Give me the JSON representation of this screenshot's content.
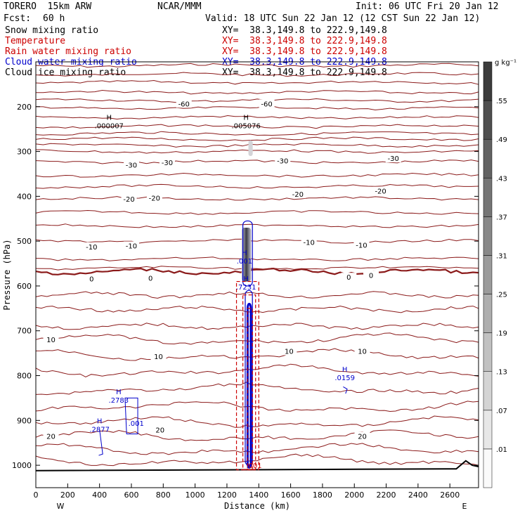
{
  "header": {
    "model": "TORERO  15km ARW",
    "center": "NCAR/MMM",
    "init": "Init: 06 UTC Fri 20 Jan 12",
    "fcst_label": "Fcst:",
    "fcst_value": "60 h",
    "valid": "Valid: 18 UTC Sun 22 Jan 12 (12 CST Sun 22 Jan 12)"
  },
  "legend": [
    {
      "name": "Snow mixing ratio",
      "xy": "XY=  38.3,149.8 to 222.9,149.8",
      "color": "#000000",
      "xycolor": "#000000"
    },
    {
      "name": "Temperature",
      "xy": "XY=  38.3,149.8 to 222.9,149.8",
      "color": "#cc0000",
      "xycolor": "#cc0000"
    },
    {
      "name": "Rain water mixing ratio",
      "xy": "XY=  38.3,149.8 to 222.9,149.8",
      "color": "#cc0000",
      "xycolor": "#cc0000"
    },
    {
      "name": "Cloud water mixing ratio",
      "xy": "XY=  38.3,149.8 to 222.9,149.8",
      "color": "#0000cc",
      "xycolor": "#0000cc"
    },
    {
      "name": "Cloud ice mixing ratio",
      "xy": "XY=  38.3,149.8 to 222.9,149.8",
      "color": "#000000",
      "xycolor": "#000000"
    }
  ],
  "chart_data": {
    "type": "cross-section contour",
    "xlabel": "Distance (km)",
    "ylabel": "Pressure (hPa)",
    "xlim": [
      0,
      2780
    ],
    "ylim": [
      1050,
      100
    ],
    "x_ticks": [
      0,
      200,
      400,
      600,
      800,
      1000,
      1200,
      1400,
      1600,
      1800,
      2000,
      2200,
      2400,
      2600
    ],
    "y_ticks": [
      200,
      300,
      400,
      500,
      600,
      700,
      800,
      900,
      1000
    ],
    "x_end_labels": [
      "W",
      "E"
    ],
    "temperature_isotherm_labels": [
      {
        "value": "-60",
        "x": 930,
        "p": 193
      },
      {
        "value": "-60",
        "x": 1450,
        "p": 193
      },
      {
        "value": "-30",
        "x": 600,
        "p": 330
      },
      {
        "value": "-30",
        "x": 825,
        "p": 324
      },
      {
        "value": "-30",
        "x": 1550,
        "p": 320
      },
      {
        "value": "-30",
        "x": 2245,
        "p": 315
      },
      {
        "value": "-20",
        "x": 585,
        "p": 406
      },
      {
        "value": "-20",
        "x": 745,
        "p": 403
      },
      {
        "value": "-20",
        "x": 1645,
        "p": 395
      },
      {
        "value": "-20",
        "x": 2165,
        "p": 388
      },
      {
        "value": "-10",
        "x": 350,
        "p": 512
      },
      {
        "value": "-10",
        "x": 600,
        "p": 510
      },
      {
        "value": "-10",
        "x": 1715,
        "p": 502
      },
      {
        "value": "-10",
        "x": 2045,
        "p": 508
      },
      {
        "value": "0",
        "x": 350,
        "p": 584
      },
      {
        "value": "0",
        "x": 720,
        "p": 582
      },
      {
        "value": "0",
        "x": 1965,
        "p": 580
      },
      {
        "value": "0",
        "x": 2105,
        "p": 576
      },
      {
        "value": "10",
        "x": 95,
        "p": 719
      },
      {
        "value": "10",
        "x": 770,
        "p": 757
      },
      {
        "value": "10",
        "x": 1590,
        "p": 745
      },
      {
        "value": "10",
        "x": 2050,
        "p": 745
      },
      {
        "value": "20",
        "x": 95,
        "p": 935
      },
      {
        "value": "20",
        "x": 780,
        "p": 921
      },
      {
        "value": "20",
        "x": 2050,
        "p": 935
      }
    ],
    "extrema_labels": [
      {
        "marker": "H",
        "value": ".000007",
        "x": 460,
        "p": 248,
        "color": "#000000"
      },
      {
        "marker": "H",
        "value": ".005076",
        "x": 1320,
        "p": 248,
        "color": "#000000"
      },
      {
        "marker": "H",
        "value": ".001",
        "x": 1310,
        "p": 550,
        "color": "#0000cc"
      },
      {
        "marker": "H",
        "value": ".7231",
        "x": 1320,
        "p": 608,
        "color": "#0000cc"
      },
      {
        "marker": "H",
        "value": ".2783",
        "x": 520,
        "p": 860,
        "color": "#0000cc"
      },
      {
        "marker": "H",
        "value": ".2877",
        "x": 400,
        "p": 925,
        "color": "#0000cc"
      },
      {
        "marker": "",
        "value": ".001",
        "x": 630,
        "p": 912,
        "color": "#0000cc"
      },
      {
        "marker": "H",
        "value": ".0159",
        "x": 1940,
        "p": 810,
        "color": "#0000cc"
      },
      {
        "marker": "",
        "value": ".001",
        "x": 1370,
        "p": 1006,
        "color": "#cc0000"
      }
    ],
    "colorbar": {
      "units": "g kg⁻¹",
      "labels": [
        ".01",
        ".07",
        ".13",
        ".19",
        ".25",
        ".31",
        ".37",
        ".43",
        ".49",
        ".55"
      ]
    }
  }
}
